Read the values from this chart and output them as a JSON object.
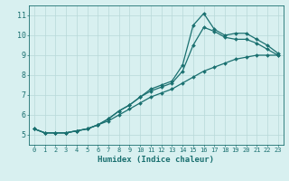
{
  "xlabel": "Humidex (Indice chaleur)",
  "bg_color": "#d8f0f0",
  "grid_color": "#b8d8d8",
  "line_color": "#1a7070",
  "xlim": [
    -0.5,
    23.5
  ],
  "ylim": [
    4.5,
    11.5
  ],
  "xticks": [
    0,
    1,
    2,
    3,
    4,
    5,
    6,
    7,
    8,
    9,
    10,
    11,
    12,
    13,
    14,
    15,
    16,
    17,
    18,
    19,
    20,
    21,
    22,
    23
  ],
  "yticks": [
    5,
    6,
    7,
    8,
    9,
    10,
    11
  ],
  "x": [
    0,
    1,
    2,
    3,
    4,
    5,
    6,
    7,
    8,
    9,
    10,
    11,
    12,
    13,
    14,
    15,
    16,
    17,
    18,
    19,
    20,
    21,
    22,
    23
  ],
  "line1": [
    5.3,
    5.1,
    5.1,
    5.1,
    5.2,
    5.3,
    5.5,
    5.8,
    6.2,
    6.5,
    6.9,
    7.3,
    7.5,
    7.7,
    8.5,
    10.5,
    11.1,
    10.3,
    10.0,
    10.1,
    10.1,
    9.8,
    9.5,
    9.1
  ],
  "line2": [
    5.3,
    5.1,
    5.1,
    5.1,
    5.2,
    5.3,
    5.5,
    5.8,
    6.2,
    6.5,
    6.9,
    7.2,
    7.4,
    7.6,
    8.2,
    9.5,
    10.4,
    10.2,
    9.9,
    9.8,
    9.8,
    9.6,
    9.3,
    9.0
  ],
  "line3": [
    5.3,
    5.1,
    5.1,
    5.1,
    5.2,
    5.3,
    5.5,
    5.7,
    6.0,
    6.3,
    6.6,
    6.9,
    7.1,
    7.3,
    7.6,
    7.9,
    8.2,
    8.4,
    8.6,
    8.8,
    8.9,
    9.0,
    9.0,
    9.0
  ],
  "tick_fontsize": 5.0,
  "xlabel_fontsize": 6.5,
  "marker_size": 2.0,
  "line_width": 0.9
}
